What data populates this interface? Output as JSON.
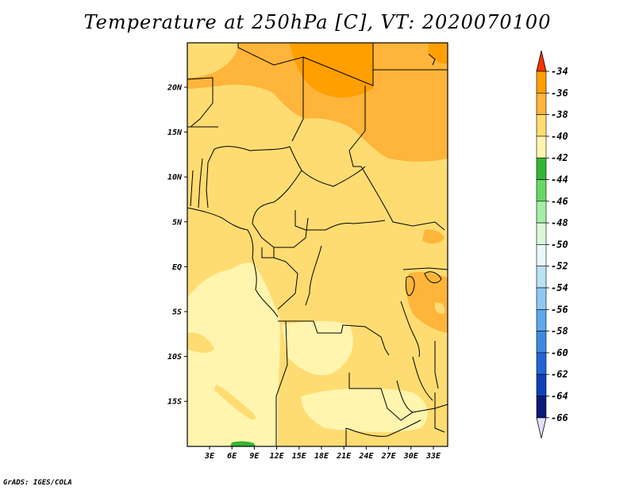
{
  "title": "Temperature at 250hPa [C], VT: 2020070100",
  "credit": "GrADS: IGES/COLA",
  "map": {
    "lat_labels": [
      "20N",
      "15N",
      "10N",
      "5N",
      "EQ",
      "5S",
      "10S",
      "15S"
    ],
    "lon_labels": [
      "3E",
      "6E",
      "9E",
      "12E",
      "15E",
      "18E",
      "21E",
      "24E",
      "27E",
      "30E",
      "33E"
    ]
  },
  "colorbar": {
    "labels": [
      "-34",
      "-36",
      "-38",
      "-40",
      "-42",
      "-44",
      "-46",
      "-48",
      "-50",
      "-52",
      "-54",
      "-56",
      "-58",
      "-60",
      "-62",
      "-64",
      "-66"
    ],
    "colors": [
      "#ff5a00",
      "#ff9f00",
      "#ffb43a",
      "#ffdc72",
      "#fff5ae",
      "#33b733",
      "#66d866",
      "#a6eea6",
      "#d8f8d8",
      "#e8f8fb",
      "#b8e2f6",
      "#8fc9f2",
      "#5ea8ec",
      "#3d8be0",
      "#2266d6",
      "#1140b8",
      "#0a1a7a"
    ],
    "top_arrow_color": "#ff3300",
    "bottom_arrow_color": "#e0e0ff"
  }
}
